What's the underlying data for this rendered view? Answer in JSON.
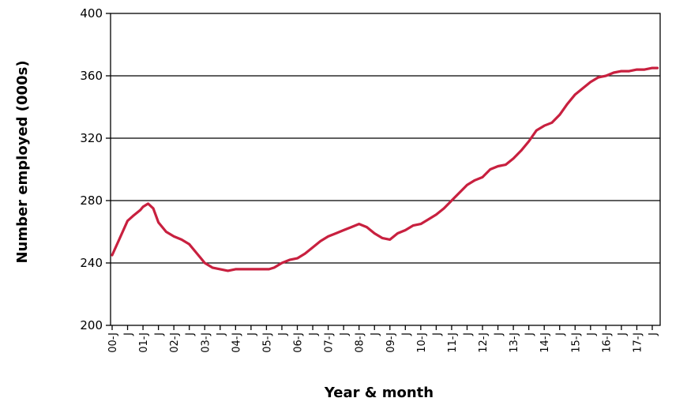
{
  "chart_data": {
    "type": "line",
    "title": "",
    "xlabel": "Year & month",
    "ylabel": "Number employed (000s)",
    "ylim": [
      200,
      400
    ],
    "yticks": [
      200,
      240,
      280,
      320,
      360,
      400
    ],
    "grid": "horizontal",
    "legend": "none",
    "line_color": "#C8203F",
    "x_tick_labels": [
      "00-J",
      "J",
      "01-J",
      "J",
      "02-J",
      "J",
      "03-J",
      "J",
      "04-J",
      "J",
      "05-J",
      "J",
      "06-J",
      "J",
      "07-J",
      "J",
      "08-J",
      "J",
      "09-J",
      "J",
      "10-J",
      "J",
      "11-J",
      "J",
      "12-J",
      "J",
      "13-J",
      "J",
      "14-J",
      "J",
      "15-J",
      "J",
      "16-J",
      "J",
      "17-J",
      "J"
    ],
    "series": [
      {
        "name": "",
        "x": [
          "2000-01",
          "2000-04",
          "2000-07",
          "2000-09",
          "2000-12",
          "2001-01",
          "2001-03",
          "2001-05",
          "2001-07",
          "2001-10",
          "2002-01",
          "2002-04",
          "2002-07",
          "2002-10",
          "2003-01",
          "2003-04",
          "2003-07",
          "2003-10",
          "2004-01",
          "2004-04",
          "2004-07",
          "2004-10",
          "2005-01",
          "2005-02",
          "2005-04",
          "2005-07",
          "2005-10",
          "2006-01",
          "2006-04",
          "2006-07",
          "2006-10",
          "2007-01",
          "2007-04",
          "2007-07",
          "2007-10",
          "2008-01",
          "2008-04",
          "2008-07",
          "2008-10",
          "2009-01",
          "2009-04",
          "2009-07",
          "2009-10",
          "2010-01",
          "2010-04",
          "2010-07",
          "2010-10",
          "2011-01",
          "2011-04",
          "2011-07",
          "2011-10",
          "2012-01",
          "2012-04",
          "2012-07",
          "2012-10",
          "2013-01",
          "2013-04",
          "2013-07",
          "2013-10",
          "2014-01",
          "2014-04",
          "2014-07",
          "2014-10",
          "2015-01",
          "2015-04",
          "2015-07",
          "2015-10",
          "2016-01",
          "2016-04",
          "2016-07",
          "2016-10",
          "2017-01",
          "2017-04",
          "2017-07",
          "2017-09"
        ],
        "values": [
          245,
          256,
          267,
          270,
          274,
          276,
          278,
          275,
          266,
          260,
          257,
          255,
          252,
          246,
          240,
          237,
          236,
          235,
          236,
          236,
          236,
          236,
          236,
          236,
          237,
          240,
          242,
          243,
          246,
          250,
          254,
          257,
          259,
          261,
          263,
          265,
          263,
          259,
          256,
          255,
          259,
          261,
          264,
          265,
          268,
          271,
          275,
          280,
          285,
          290,
          293,
          295,
          300,
          302,
          303,
          307,
          312,
          318,
          325,
          328,
          330,
          335,
          342,
          348,
          352,
          356,
          359,
          360,
          362,
          363,
          363,
          364,
          364,
          365,
          365
        ]
      }
    ]
  }
}
